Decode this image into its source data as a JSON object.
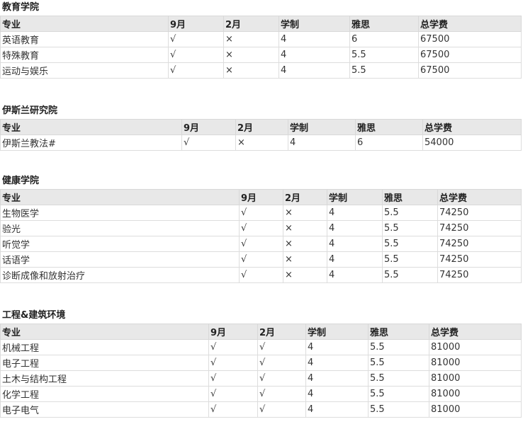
{
  "sections": [
    {
      "title": "教育学院",
      "headers": [
        "专业",
        "9月",
        "2月",
        "学制",
        "雅思",
        "总学费"
      ],
      "rows": [
        [
          "英语教育",
          "√",
          "×",
          "4",
          "6",
          "67500"
        ],
        [
          "特殊教育",
          "√",
          "×",
          "4",
          "5.5",
          "67500"
        ],
        [
          "运动与娱乐",
          "√",
          "×",
          "4",
          "5.5",
          "67500"
        ]
      ]
    },
    {
      "title": "伊斯兰研究院",
      "headers": [
        "专业",
        "9月",
        "2月",
        "学制",
        "雅思",
        "总学费"
      ],
      "rows": [
        [
          "伊斯兰教法#",
          "√",
          "×",
          "4",
          "6",
          "54000"
        ]
      ]
    },
    {
      "title": "健康学院",
      "headers": [
        "专业",
        "9月",
        "2月",
        "学制",
        "雅思",
        "总学费"
      ],
      "rows": [
        [
          "生物医学",
          "√",
          "×",
          "4",
          "5.5",
          "74250"
        ],
        [
          "验光",
          "√",
          "×",
          "4",
          "5.5",
          "74250"
        ],
        [
          "听觉学",
          "√",
          "×",
          "4",
          "5.5",
          "74250"
        ],
        [
          "话语学",
          "√",
          "×",
          "4",
          "5.5",
          "74250"
        ],
        [
          "诊断成像和放射治疗",
          "√",
          "×",
          "4",
          "5.5",
          "74250"
        ]
      ]
    },
    {
      "title": "工程&建筑环境",
      "headers": [
        "专业",
        "9月",
        "2月",
        "学制",
        "雅思",
        "总学费"
      ],
      "rows": [
        [
          "机械工程",
          "√",
          "√",
          "4",
          "5.5",
          "81000"
        ],
        [
          "电子工程",
          "√",
          "√",
          "4",
          "5.5",
          "81000"
        ],
        [
          "土木与结构工程",
          "√",
          "√",
          "4",
          "5.5",
          "81000"
        ],
        [
          "化学工程",
          "√",
          "√",
          "4",
          "5.5",
          "81000"
        ],
        [
          "电子电气",
          "√",
          "√",
          "4",
          "5.5",
          "81000"
        ]
      ]
    }
  ]
}
